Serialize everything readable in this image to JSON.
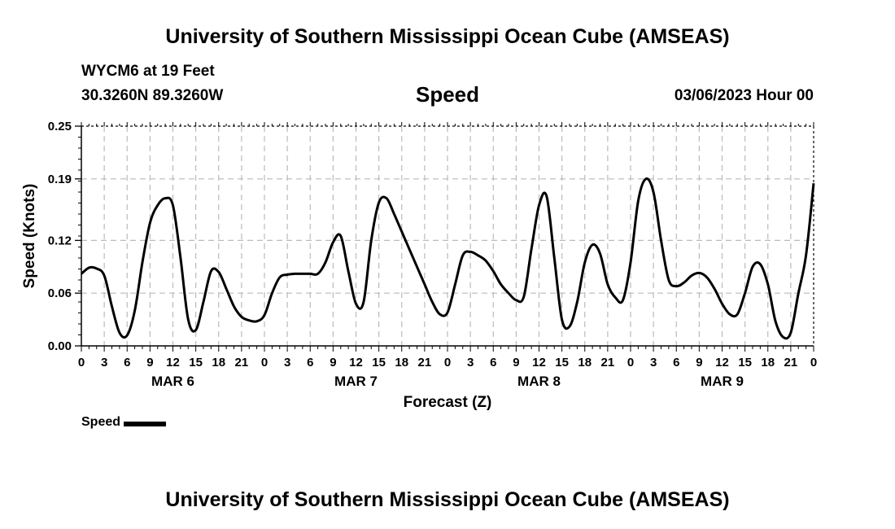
{
  "header": {
    "title_top": "University of Southern Mississippi Ocean Cube (AMSEAS)",
    "station": "WYCM6 at 19 Feet",
    "location": "30.3260N  89.3260W",
    "variable": "Speed",
    "datetime": "03/06/2023 Hour 00",
    "title_bottom": "University of Southern Mississippi Ocean Cube (AMSEAS)"
  },
  "legend": {
    "label": "Speed"
  },
  "colors": {
    "line": "#000000",
    "grid": "#bbbbbb",
    "background": "#ffffff"
  },
  "chart_data": {
    "type": "line",
    "title": "Speed",
    "xlabel": "Forecast (Z)",
    "ylabel": "Speed (Knots)",
    "xlim": [
      0,
      96
    ],
    "ylim": [
      0,
      0.25
    ],
    "yticks": [
      0.0,
      0.06,
      0.12,
      0.19,
      0.25
    ],
    "ytick_labels": [
      "0.00",
      "0.06",
      "0.12",
      "0.19",
      "0.25"
    ],
    "xtick_labels": [
      "0",
      "3",
      "6",
      "9",
      "12",
      "15",
      "18",
      "21",
      "0",
      "3",
      "6",
      "9",
      "12",
      "15",
      "18",
      "21",
      "0",
      "3",
      "6",
      "9",
      "12",
      "15",
      "18",
      "21",
      "0",
      "3",
      "6",
      "9",
      "12",
      "15",
      "18",
      "21",
      "0"
    ],
    "day_labels": [
      {
        "label": "MAR 6",
        "center_hour": 12
      },
      {
        "label": "MAR 7",
        "center_hour": 36
      },
      {
        "label": "MAR 8",
        "center_hour": 60
      },
      {
        "label": "MAR 9",
        "center_hour": 84
      }
    ],
    "grid": true,
    "series": [
      {
        "name": "Speed",
        "x": [
          0,
          1,
          2,
          3,
          4,
          5,
          6,
          7,
          8,
          9,
          10,
          11,
          12,
          13,
          14,
          15,
          16,
          17,
          18,
          19,
          20,
          21,
          22,
          23,
          24,
          25,
          26,
          27,
          28,
          29,
          30,
          31,
          32,
          33,
          34,
          35,
          36,
          37,
          38,
          39,
          40,
          41,
          42,
          43,
          44,
          45,
          46,
          47,
          48,
          49,
          50,
          51,
          52,
          53,
          54,
          55,
          56,
          57,
          58,
          59,
          60,
          61,
          62,
          63,
          64,
          65,
          66,
          67,
          68,
          69,
          70,
          71,
          72,
          73,
          74,
          75,
          76,
          77,
          78,
          79,
          80,
          81,
          82,
          83,
          84,
          85,
          86,
          87,
          88,
          89,
          90,
          91,
          92,
          93,
          94,
          95,
          96
        ],
        "values": [
          0.082,
          0.089,
          0.088,
          0.08,
          0.045,
          0.015,
          0.012,
          0.04,
          0.095,
          0.14,
          0.16,
          0.168,
          0.16,
          0.1,
          0.03,
          0.018,
          0.05,
          0.085,
          0.084,
          0.065,
          0.045,
          0.033,
          0.029,
          0.028,
          0.035,
          0.06,
          0.078,
          0.081,
          0.082,
          0.082,
          0.082,
          0.082,
          0.095,
          0.118,
          0.125,
          0.085,
          0.048,
          0.05,
          0.12,
          0.163,
          0.168,
          0.15,
          0.13,
          0.11,
          0.09,
          0.07,
          0.05,
          0.036,
          0.038,
          0.07,
          0.103,
          0.107,
          0.103,
          0.097,
          0.085,
          0.07,
          0.06,
          0.052,
          0.056,
          0.11,
          0.16,
          0.17,
          0.1,
          0.03,
          0.022,
          0.05,
          0.095,
          0.115,
          0.105,
          0.07,
          0.055,
          0.052,
          0.095,
          0.165,
          0.19,
          0.175,
          0.12,
          0.075,
          0.068,
          0.072,
          0.08,
          0.083,
          0.078,
          0.065,
          0.048,
          0.036,
          0.036,
          0.06,
          0.09,
          0.093,
          0.07,
          0.028,
          0.01,
          0.015,
          0.06,
          0.103,
          0.185
        ]
      }
    ]
  }
}
